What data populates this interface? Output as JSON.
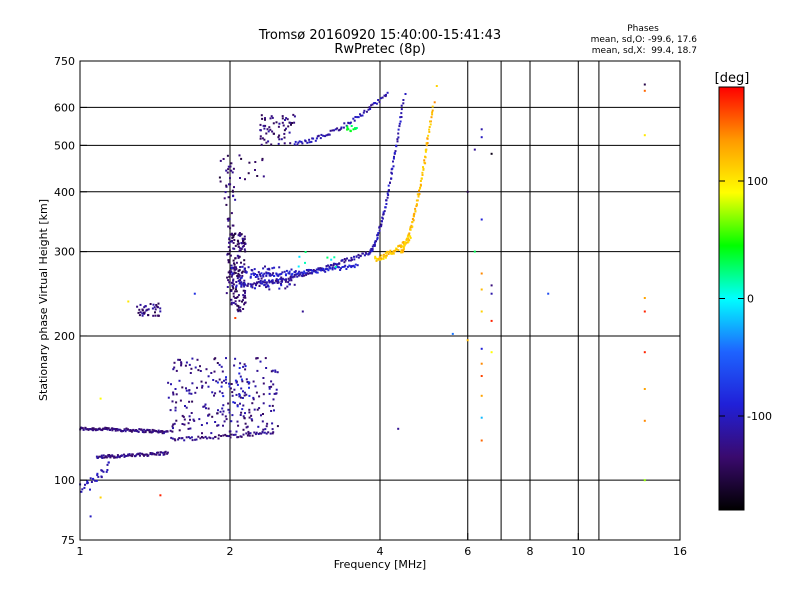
{
  "chart_data": {
    "type": "scatter",
    "title": "Tromsø 20160920 15:40:00-15:41:43",
    "subtitle": "RwPretec (8p)",
    "xlabel": "Frequency [MHz]",
    "ylabel": "Stationary phase Virtual Height [km]",
    "x_scale": "log",
    "y_scale": "log",
    "xlim": [
      1,
      16
    ],
    "ylim": [
      75,
      750
    ],
    "x_ticks": [
      "1",
      "2",
      "4",
      "6",
      "8",
      "10",
      "16"
    ],
    "x_grid": [
      2,
      4,
      6,
      7,
      8,
      10,
      11
    ],
    "y_ticks": [
      "75",
      "100",
      "200",
      "300",
      "400",
      "500",
      "600",
      "750"
    ],
    "y_grid": [
      100,
      200,
      300,
      400,
      500,
      600
    ],
    "grid": true,
    "info": {
      "heading": "Phases",
      "line1": "mean, sd,O: -99.6, 17.6",
      "line2": "mean, sd,X:  99.4, 18.7"
    },
    "colorbar": {
      "label": "[deg]",
      "ticks": [
        "100",
        "0",
        "-100"
      ],
      "tick_values": [
        100,
        0,
        -100
      ],
      "range": [
        -180,
        180
      ],
      "colors": [
        "#000000",
        "#3a0a6e",
        "#2020d8",
        "#1e64ff",
        "#00ffff",
        "#00ff00",
        "#ffff00",
        "#ff9900",
        "#ff0000"
      ]
    },
    "series": [
      {
        "start": [
          1.0,
          128
        ],
        "end": [
          1.5,
          126
        ],
        "phase": -130,
        "jitter": 0.5,
        "n": 110
      },
      {
        "start": [
          1.08,
          112
        ],
        "end": [
          1.5,
          114
        ],
        "phase": -125,
        "jitter": 0.5,
        "n": 80
      },
      {
        "start": [
          1.0,
          96
        ],
        "end": [
          1.15,
          110
        ],
        "phase": -110,
        "jitter": 1.5,
        "n": 30
      },
      {
        "start": [
          1.52,
          122
        ],
        "end": [
          2.45,
          126
        ],
        "phase": -125,
        "jitter": 0.6,
        "n": 60
      },
      {
        "start": [
          2.1,
          255
        ],
        "end": [
          3.8,
          300
        ],
        "phase": -115,
        "jitter": 0.7,
        "n": 120
      },
      {
        "start": [
          2.2,
          268
        ],
        "end": [
          3.6,
          280
        ],
        "phase": -95,
        "jitter": 0.6,
        "n": 90
      },
      {
        "start": [
          3.8,
          298
        ],
        "end": [
          4.45,
          620
        ],
        "phase": -105,
        "jitter": 0.5,
        "n": 80
      },
      {
        "start": [
          4.4,
          300
        ],
        "end": [
          5.1,
          600
        ],
        "phase": 120,
        "jitter": 0.6,
        "n": 90
      },
      {
        "start": [
          3.9,
          290
        ],
        "end": [
          4.6,
          320
        ],
        "phase": 115,
        "jitter": 0.8,
        "n": 60
      },
      {
        "start": [
          2.7,
          505
        ],
        "end": [
          4.15,
          640
        ],
        "phase": -110,
        "jitter": 0.6,
        "n": 70
      }
    ],
    "clusters": [
      {
        "x": [
          1.97,
          2.15
        ],
        "y": [
          225,
          330
        ],
        "phase": -135,
        "n": 170
      },
      {
        "x": [
          1.95,
          2.05
        ],
        "y": [
          330,
          460
        ],
        "phase": -130,
        "n": 30
      },
      {
        "x": [
          2.0,
          2.7
        ],
        "y": [
          250,
          280
        ],
        "phase": -110,
        "n": 90
      },
      {
        "x": [
          1.5,
          2.5
        ],
        "y": [
          125,
          180
        ],
        "phase": -125,
        "n": 230
      },
      {
        "x": [
          1.85,
          2.2
        ],
        "y": [
          140,
          175
        ],
        "phase": -95,
        "n": 30
      },
      {
        "x": [
          1.3,
          1.45
        ],
        "y": [
          220,
          235
        ],
        "phase": -130,
        "n": 40
      },
      {
        "x": [
          2.3,
          2.7
        ],
        "y": [
          500,
          580
        ],
        "phase": -130,
        "n": 60
      },
      {
        "x": [
          1.9,
          2.4
        ],
        "y": [
          420,
          480
        ],
        "phase": -140,
        "n": 20
      },
      {
        "x": [
          3.4,
          3.6
        ],
        "y": [
          535,
          550
        ],
        "phase": 40,
        "n": 12
      },
      {
        "x": [
          2.7,
          3.3
        ],
        "y": [
          270,
          300
        ],
        "phase": 10,
        "n": 8
      }
    ],
    "points": [
      [
        1.05,
        84,
        -100
      ],
      [
        1.1,
        92,
        110
      ],
      [
        1.45,
        93,
        170
      ],
      [
        1.1,
        148,
        90
      ],
      [
        1.25,
        236,
        100
      ],
      [
        2.05,
        218,
        160
      ],
      [
        2.8,
        225,
        -120
      ],
      [
        1.7,
        245,
        -80
      ],
      [
        4.5,
        640,
        -100
      ],
      [
        5.2,
        665,
        110
      ],
      [
        5.15,
        615,
        140
      ],
      [
        4.35,
        128,
        -120
      ],
      [
        5.6,
        202,
        -40
      ],
      [
        6.0,
        400,
        -150
      ],
      [
        6.0,
        196,
        120
      ],
      [
        6.2,
        490,
        -120
      ],
      [
        6.2,
        300,
        30
      ],
      [
        6.4,
        540,
        -110
      ],
      [
        6.4,
        520,
        -100
      ],
      [
        6.4,
        350,
        -90
      ],
      [
        6.4,
        270,
        140
      ],
      [
        6.4,
        250,
        120
      ],
      [
        6.4,
        225,
        110
      ],
      [
        6.4,
        188,
        -90
      ],
      [
        6.4,
        175,
        140
      ],
      [
        6.4,
        165,
        160
      ],
      [
        6.4,
        150,
        130
      ],
      [
        6.4,
        135,
        -20
      ],
      [
        6.4,
        121,
        150
      ],
      [
        6.7,
        480,
        -170
      ],
      [
        6.7,
        255,
        -130
      ],
      [
        6.7,
        245,
        -110
      ],
      [
        6.7,
        215,
        170
      ],
      [
        6.7,
        185,
        90
      ],
      [
        8.7,
        245,
        -60
      ],
      [
        13.6,
        670,
        -150
      ],
      [
        13.6,
        650,
        150
      ],
      [
        13.6,
        525,
        100
      ],
      [
        13.6,
        240,
        130
      ],
      [
        13.6,
        225,
        170
      ],
      [
        13.6,
        185,
        170
      ],
      [
        13.6,
        155,
        130
      ],
      [
        13.6,
        133,
        140
      ],
      [
        13.6,
        100,
        70
      ]
    ]
  }
}
